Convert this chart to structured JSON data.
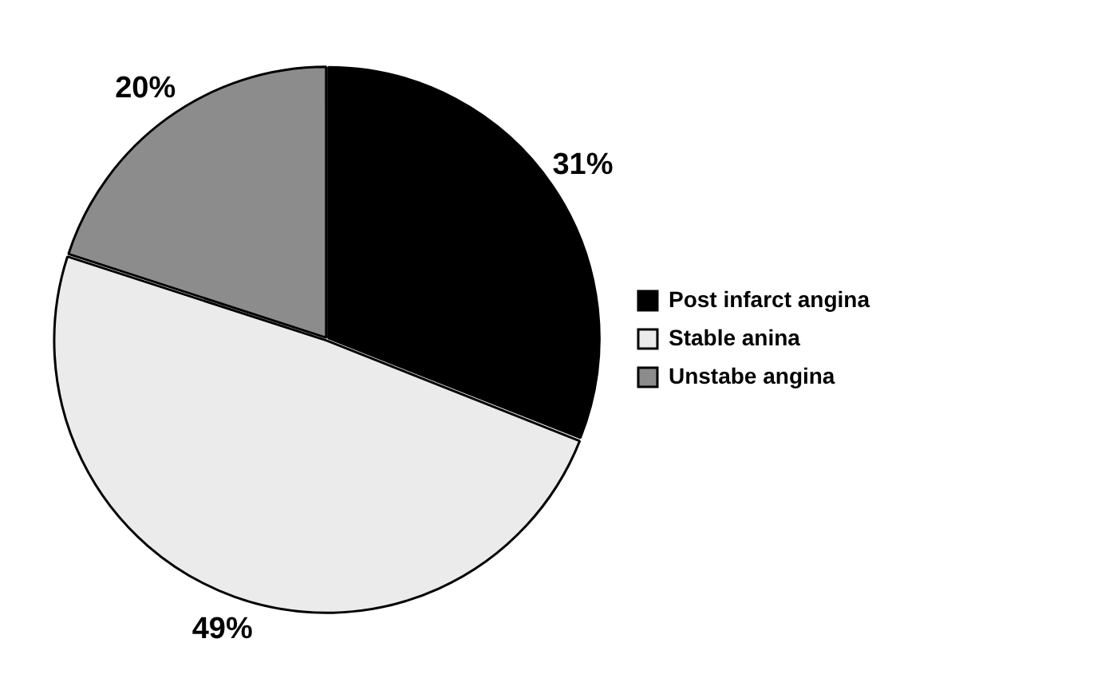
{
  "chart_data": {
    "type": "pie",
    "categories": [
      "Post infarct angina",
      "Stable anina",
      "Unstabe angina"
    ],
    "values": [
      31,
      49,
      20
    ],
    "colors": [
      "#000000",
      "#ebebeb",
      "#8c8c8c"
    ],
    "value_labels": [
      "31%",
      "49%",
      "20%"
    ],
    "legend": "right"
  }
}
